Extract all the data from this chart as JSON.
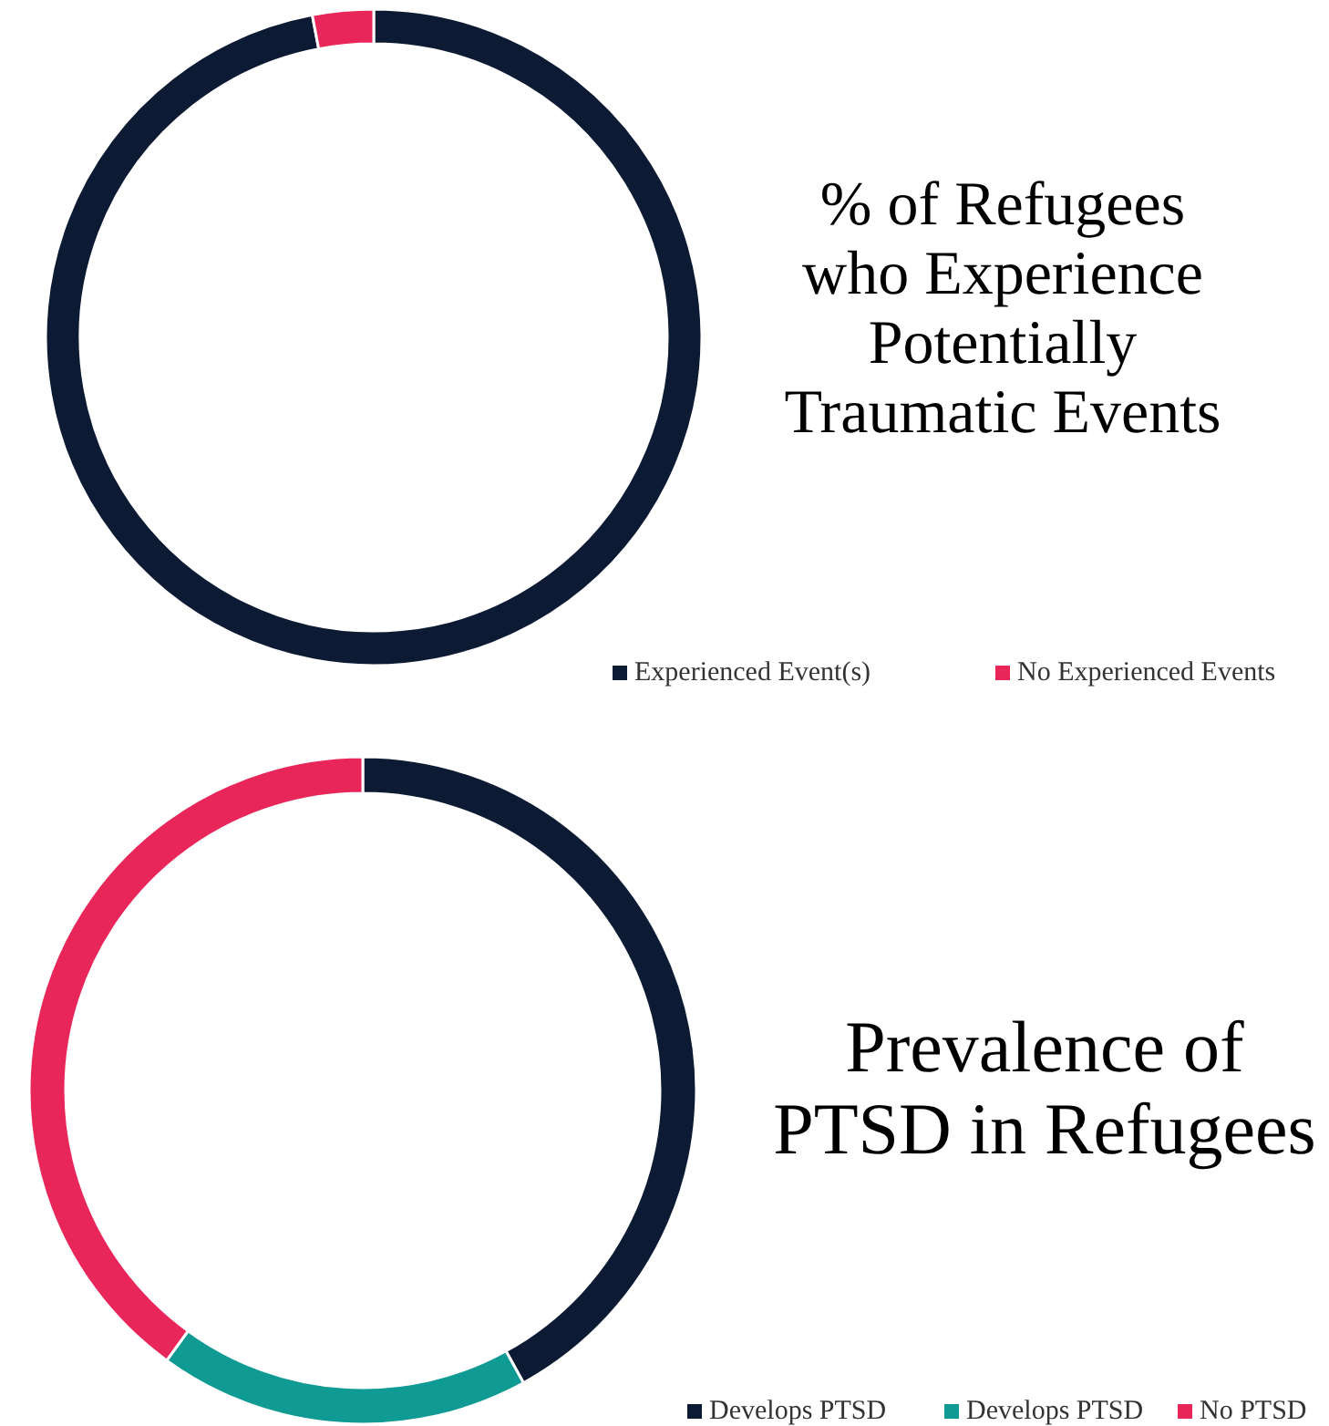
{
  "chart_data": [
    {
      "type": "donut",
      "title": "% of Refugees who Experience Potentially Traumatic Events",
      "categories": [
        "Experienced Event(s)",
        "No Experienced Events"
      ],
      "values": [
        97,
        3
      ],
      "colors": [
        "#0c1a33",
        "#e8265a"
      ],
      "legend": "bottom"
    },
    {
      "type": "donut",
      "title": "Prevalence of PTSD in Refugees",
      "categories": [
        "Develops PTSD",
        "Develops PTSD",
        "No PTSD"
      ],
      "values": [
        42,
        18,
        40
      ],
      "colors": [
        "#0c1a33",
        "#0f9a94",
        "#e8265a"
      ],
      "legend": "bottom"
    }
  ]
}
